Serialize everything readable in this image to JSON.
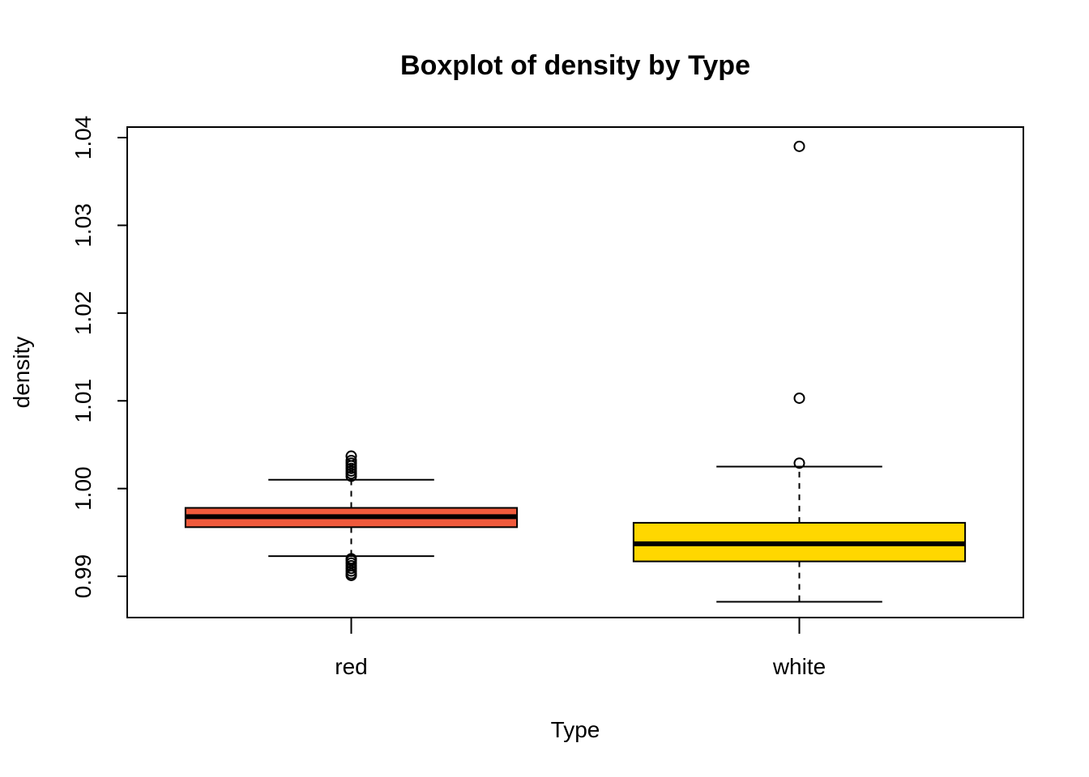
{
  "chart_data": {
    "type": "boxplot",
    "title": "Boxplot of density by Type",
    "xlabel": "Type",
    "ylabel": "density",
    "ylim": [
      0.9853,
      1.0412
    ],
    "yticks": [
      "0.99",
      "1.00",
      "1.01",
      "1.02",
      "1.03",
      "1.04"
    ],
    "grid": false,
    "categories": [
      "red",
      "white"
    ],
    "boxes": [
      {
        "category": "red",
        "color": "#F05A3C",
        "whisker_low": 0.9923,
        "q1": 0.9956,
        "median": 0.9968,
        "q3": 0.9978,
        "whisker_high": 1.001,
        "outliers": [
          0.9901,
          0.9903,
          0.9906,
          0.9909,
          0.9912,
          0.9915,
          0.9918,
          0.992,
          1.0014,
          1.0017,
          1.002,
          1.0023,
          1.0026,
          1.0029,
          1.0032,
          1.0037
        ]
      },
      {
        "category": "white",
        "color": "#FFD700",
        "whisker_low": 0.9871,
        "q1": 0.9917,
        "median": 0.9937,
        "q3": 0.9961,
        "whisker_high": 1.0025,
        "outliers": [
          1.0029,
          1.0103,
          1.039
        ]
      }
    ]
  }
}
